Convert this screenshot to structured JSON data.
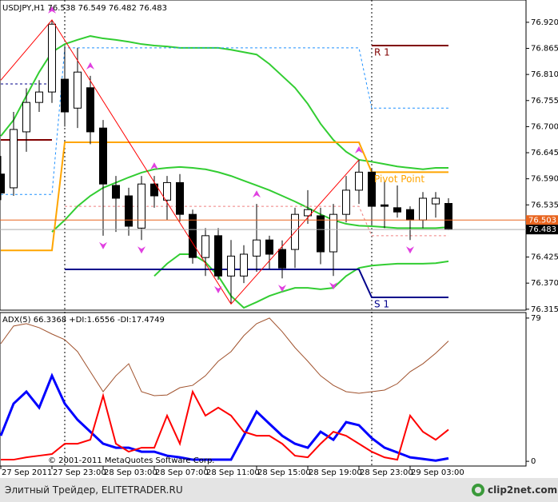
{
  "chart_data": [
    {
      "type": "candlestick",
      "title": "USDJPY,H1 76.538 76.549 76.482 76.483",
      "categories": [
        "27 Sep 2011",
        null,
        null,
        null,
        "27 Sep 23:00",
        null,
        null,
        null,
        "28 Sep 03:00",
        null,
        null,
        null,
        "28 Sep 07:00",
        null,
        null,
        null,
        "28 Sep 11:00",
        null,
        null,
        null,
        "28 Sep 15:00",
        null,
        null,
        null,
        "28 Sep 19:00",
        null,
        null,
        null,
        "28 Sep 23:00",
        null,
        null,
        null,
        "29 Sep 03:00",
        null,
        null,
        null
      ],
      "open": [
        76.6,
        76.571,
        76.689,
        76.751,
        76.773,
        76.8,
        76.739,
        76.782,
        76.697,
        76.576,
        76.554,
        76.486,
        76.579,
        76.545,
        76.582,
        76.515,
        76.424,
        76.47,
        76.385,
        76.385,
        76.427,
        76.461,
        76.441,
        76.441,
        76.512,
        76.512,
        76.436,
        76.515,
        76.566,
        76.604,
        76.535,
        76.529,
        76.525,
        76.503,
        76.537,
        76.538
      ],
      "high": [
        76.638,
        76.731,
        76.781,
        76.798,
        76.925,
        76.87,
        76.866,
        76.807,
        76.714,
        76.596,
        76.571,
        76.596,
        76.596,
        76.596,
        76.6,
        76.525,
        76.486,
        76.486,
        76.461,
        76.45,
        76.537,
        76.47,
        76.46,
        76.529,
        76.566,
        76.529,
        76.537,
        76.596,
        76.63,
        76.613,
        76.587,
        76.576,
        76.532,
        76.562,
        76.562,
        76.549
      ],
      "low": [
        76.545,
        76.554,
        76.647,
        76.731,
        76.75,
        76.7,
        76.697,
        76.663,
        76.47,
        76.478,
        76.47,
        76.461,
        76.529,
        76.503,
        76.5,
        76.411,
        76.385,
        76.377,
        76.326,
        76.37,
        76.394,
        76.4,
        76.38,
        76.402,
        76.495,
        76.41,
        76.385,
        76.498,
        76.537,
        76.495,
        76.486,
        76.508,
        76.461,
        76.486,
        76.508,
        76.482
      ],
      "close": [
        76.56,
        76.694,
        76.751,
        76.773,
        76.916,
        76.731,
        76.815,
        76.689,
        76.579,
        76.549,
        76.49,
        76.579,
        76.554,
        76.582,
        76.515,
        76.424,
        76.47,
        76.385,
        76.427,
        76.431,
        76.461,
        76.431,
        76.402,
        76.515,
        76.525,
        76.436,
        76.515,
        76.566,
        76.604,
        76.532,
        76.532,
        76.52,
        76.503,
        76.549,
        76.549,
        76.483
      ],
      "up_color": "#ffffff",
      "down_color": "#000000",
      "ylim": [
        76.313,
        76.967
      ],
      "yticks": [
        {
          "value": 76.92,
          "label": "76.920"
        },
        76.865,
        {
          "value": 76.81,
          "label": "76.810"
        },
        76.755,
        {
          "value": 76.7,
          "label": "76.700"
        },
        76.645,
        {
          "value": 76.59,
          "label": "76.590"
        },
        76.535,
        76.425,
        {
          "value": 76.37,
          "label": "76.370"
        },
        76.315
      ],
      "series": [
        {
          "color": "#32cd32",
          "width": 2,
          "values": [
            76.68,
            76.714,
            76.765,
            76.815,
            76.857,
            76.874,
            76.883,
            76.891,
            76.886,
            76.883,
            76.879,
            76.874,
            76.871,
            76.869,
            76.866,
            76.866,
            76.866,
            76.866,
            76.862,
            76.857,
            76.852,
            76.832,
            76.807,
            76.782,
            76.748,
            76.706,
            76.672,
            76.647,
            76.63,
            76.626,
            76.621,
            76.616,
            76.613,
            76.61,
            76.613,
            76.613
          ]
        },
        {
          "color": "#32cd32",
          "width": 2,
          "values": [
            null,
            null,
            null,
            null,
            76.478,
            76.503,
            76.532,
            76.554,
            76.571,
            76.582,
            76.593,
            76.603,
            76.61,
            76.613,
            76.615,
            76.613,
            76.61,
            76.604,
            76.596,
            76.586,
            76.576,
            76.566,
            76.554,
            76.542,
            76.529,
            76.515,
            76.503,
            76.495,
            76.491,
            76.49,
            76.488,
            76.486,
            76.486,
            76.486,
            76.486,
            76.488
          ]
        },
        {
          "color": "#32cd32",
          "width": 2,
          "values": [
            null,
            null,
            null,
            null,
            null,
            null,
            null,
            null,
            null,
            null,
            null,
            null,
            76.385,
            76.411,
            76.431,
            76.431,
            76.414,
            76.385,
            76.343,
            76.318,
            76.33,
            76.343,
            76.352,
            76.36,
            76.36,
            76.357,
            76.36,
            76.385,
            76.402,
            76.407,
            76.409,
            76.411,
            76.411,
            76.411,
            76.412,
            76.416
          ]
        },
        {
          "color": "#1e90ff",
          "width": 1,
          "dashed": true,
          "values": [
            76.557,
            76.557,
            76.557,
            76.557,
            76.557,
            76.866,
            76.866,
            76.866,
            76.866,
            76.866,
            76.866,
            76.866,
            76.866,
            76.866,
            76.866,
            76.866,
            76.866,
            76.866,
            76.866,
            76.866,
            76.866,
            76.866,
            76.866,
            76.866,
            76.866,
            76.866,
            76.866,
            76.866,
            76.866,
            76.739,
            76.739,
            76.739,
            76.739,
            76.739,
            76.739,
            76.739
          ]
        },
        {
          "color": "#f08080",
          "width": 1,
          "dashed": true,
          "values": [
            null,
            null,
            null,
            null,
            null,
            76.532,
            76.532,
            76.532,
            76.532,
            76.532,
            76.532,
            76.532,
            76.532,
            76.532,
            76.532,
            76.532,
            76.532,
            76.532,
            76.532,
            76.532,
            76.532,
            76.532,
            76.532,
            76.532,
            76.532,
            76.532,
            76.532,
            76.532,
            76.532,
            76.47,
            76.47,
            76.47,
            76.47,
            76.47,
            76.47,
            76.47
          ]
        },
        {
          "color": "#00008b",
          "width": 1,
          "dashed": true,
          "values": [
            76.79,
            76.79,
            76.79,
            76.79,
            76.79,
            null,
            null,
            null,
            null,
            null,
            null,
            null,
            null,
            null,
            null,
            null,
            null,
            null,
            null,
            null,
            null,
            null,
            null,
            null,
            null,
            null,
            null,
            null,
            null,
            null,
            null,
            null,
            null,
            null,
            null,
            null
          ]
        },
        {
          "label": "R 1",
          "color": "#800000",
          "width": 2,
          "values": [
            76.672,
            76.672,
            76.672,
            76.672,
            76.672,
            null,
            null,
            null,
            null,
            null,
            null,
            null,
            null,
            null,
            null,
            null,
            null,
            null,
            null,
            null,
            null,
            null,
            null,
            null,
            null,
            null,
            null,
            null,
            null,
            76.871,
            76.871,
            76.871,
            76.871,
            76.871,
            76.871,
            76.871
          ]
        },
        {
          "label": "Pivot Point",
          "color": "#ffa500",
          "width": 2,
          "values": [
            76.439,
            76.439,
            76.439,
            76.439,
            76.439,
            76.667,
            76.667,
            76.667,
            76.667,
            76.667,
            76.667,
            76.667,
            76.667,
            76.667,
            76.667,
            76.667,
            76.667,
            76.667,
            76.667,
            76.667,
            76.667,
            76.667,
            76.667,
            76.667,
            76.667,
            76.667,
            76.667,
            76.667,
            76.667,
            76.604,
            76.604,
            76.604,
            76.604,
            76.604,
            76.604,
            76.604
          ]
        },
        {
          "label": "S 1",
          "color": "#00008b",
          "width": 2,
          "values": [
            null,
            null,
            null,
            null,
            null,
            76.399,
            76.399,
            76.399,
            76.399,
            76.399,
            76.399,
            76.399,
            76.399,
            76.399,
            76.399,
            76.399,
            76.399,
            76.399,
            76.399,
            76.399,
            76.399,
            76.399,
            76.399,
            76.399,
            76.399,
            76.399,
            76.399,
            76.399,
            76.399,
            76.34,
            76.34,
            76.34,
            76.34,
            76.34,
            76.34,
            76.34
          ]
        }
      ],
      "zigzag": {
        "color": "#ff0000",
        "x": [
          0,
          4,
          18,
          28
        ],
        "values": [
          76.798,
          76.925,
          76.326,
          76.63
        ]
      },
      "fractals": {
        "color": "#e040e0",
        "up": [
          4,
          7,
          12,
          20,
          28
        ],
        "down": [
          8,
          11,
          17,
          18,
          22,
          26,
          32
        ]
      },
      "price_labels": [
        {
          "value": 76.503,
          "color": "#e8641e"
        },
        {
          "value": 76.483,
          "color": "#000000"
        }
      ]
    },
    {
      "type": "line",
      "title": "ADX(5) 66.3368 +DI:1.6556 -DI:17.4749",
      "ylim": [
        -2.6,
        81.6
      ],
      "yticks": [
        79,
        0
      ],
      "series": [
        {
          "color": "#a0522d",
          "width": 1,
          "values": [
            64.9,
            74.6,
            75.9,
            73.7,
            70.2,
            67.1,
            60.5,
            49.4,
            38.4,
            47.2,
            53.8,
            38.4,
            36.2,
            36.6,
            40.6,
            41.9,
            47.2,
            55.2,
            60.5,
            69.3,
            75.9,
            79.0,
            71.5,
            62.7,
            55.2,
            47.2,
            41.9,
            38.4,
            37.5,
            38.4,
            39.3,
            42.8,
            49.4,
            53.8,
            59.6,
            66.3368
          ]
        },
        {
          "color": "#0000ff",
          "width": 3,
          "values": [
            14.1,
            31.8,
            38.4,
            29.6,
            47.2,
            31.8,
            22.9,
            16.3,
            9.7,
            7.5,
            7.5,
            5.3,
            5.3,
            3.1,
            2.2,
            0.9,
            0.9,
            0.9,
            0.9,
            14.1,
            27.4,
            20.7,
            14.1,
            9.7,
            7.5,
            16.3,
            11.9,
            21.6,
            19.9,
            12.8,
            7.5,
            4.9,
            2.2,
            1.3,
            0.4,
            1.6556
          ]
        },
        {
          "color": "#ff0000",
          "width": 2,
          "values": [
            0.9,
            0.9,
            2.2,
            3.1,
            4.0,
            9.7,
            9.7,
            11.9,
            36.2,
            9.7,
            5.3,
            7.5,
            7.5,
            25.2,
            9.7,
            38.4,
            25.2,
            29.6,
            25.2,
            16.3,
            14.1,
            14.1,
            9.7,
            3.1,
            2.2,
            9.7,
            16.3,
            14.1,
            9.7,
            5.3,
            2.2,
            0.9,
            25.2,
            16.3,
            11.9,
            17.4749
          ]
        }
      ]
    }
  ],
  "copyright": "© 2001-2011 MetaQuotes Software Corp.",
  "footer": {
    "text": "Элитный Трейдер, ELITETRADER.RU",
    "logo": "clip2net.com"
  }
}
